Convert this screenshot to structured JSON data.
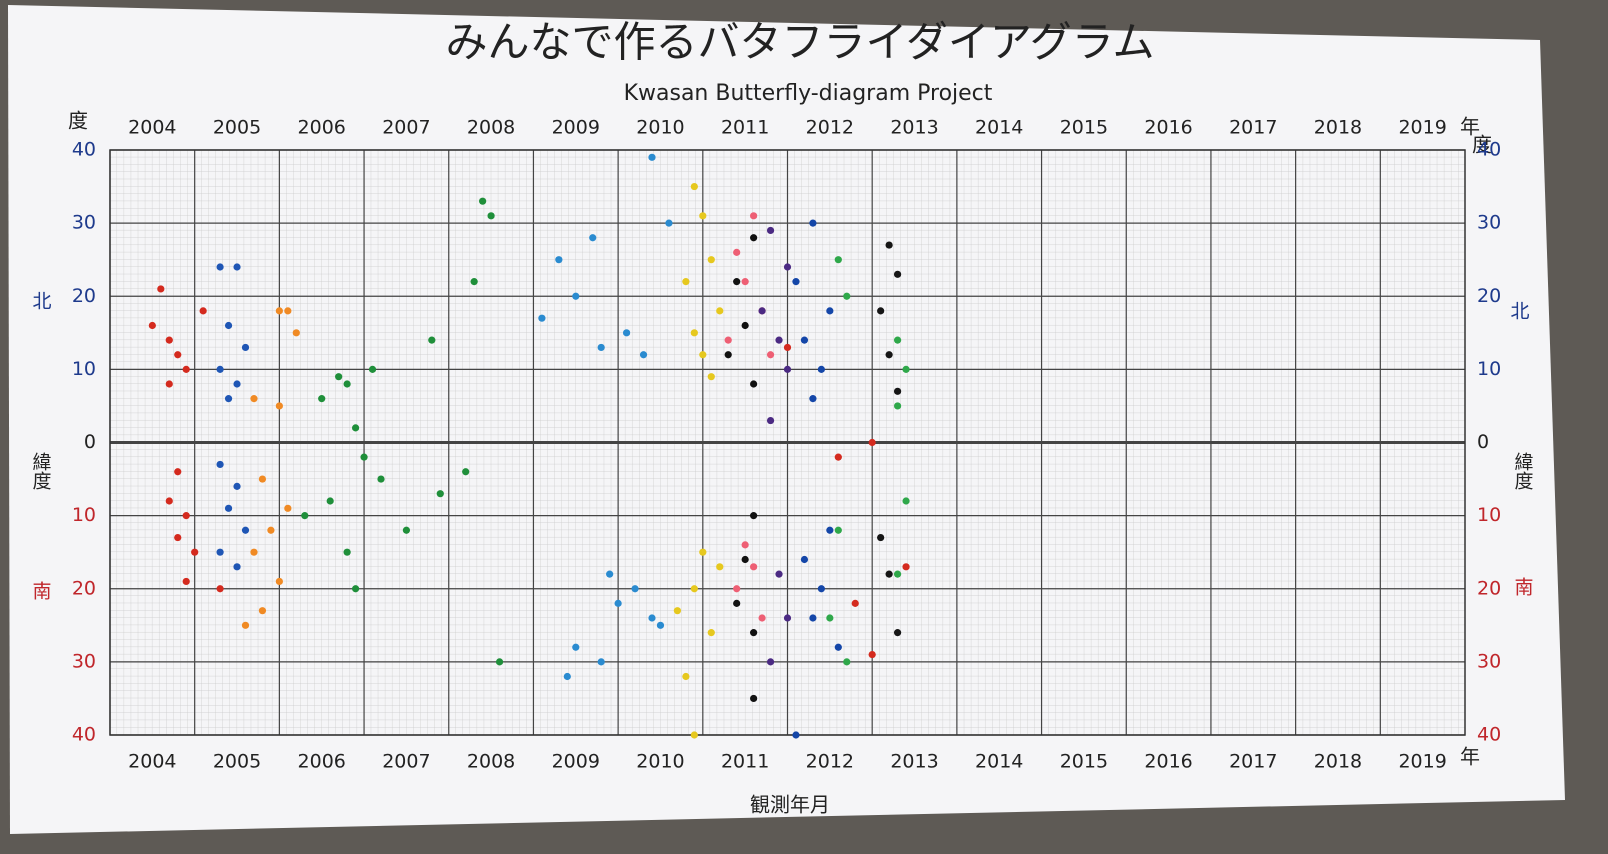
{
  "chart_data": {
    "type": "scatter",
    "title": "みんなで作るバタフライダイアグラム",
    "subtitle": "Kwasan Butterfly-diagram Project",
    "xlabel": "観測年月",
    "ylabel": "緯度",
    "x_unit": "年",
    "y_unit": "度",
    "north_label": "北",
    "south_label": "南",
    "xlim": [
      2004,
      2020
    ],
    "xticks": [
      2004,
      2005,
      2006,
      2007,
      2008,
      2009,
      2010,
      2011,
      2012,
      2013,
      2014,
      2015,
      2016,
      2017,
      2018,
      2019
    ],
    "ylim": [
      -40,
      40
    ],
    "yticks": [
      {
        "value": -40,
        "label": "40"
      },
      {
        "value": -30,
        "label": "30"
      },
      {
        "value": -20,
        "label": "20"
      },
      {
        "value": -10,
        "label": "10"
      },
      0,
      10,
      20,
      30,
      40
    ],
    "grid": true,
    "series": [
      {
        "color": "#d42a1e",
        "x": [
          2004.6,
          2004.5,
          2004.7,
          2004.8,
          2004.9,
          2004.7,
          2005.1,
          2004.8,
          2004.7,
          2004.9,
          2004.8,
          2005.0,
          2004.9,
          2005.3
        ],
        "y": [
          21,
          16,
          14,
          12,
          10,
          8,
          18,
          -4,
          -8,
          -10,
          -13,
          -15,
          -19,
          -20
        ]
      },
      {
        "color": "#1f56b5",
        "x": [
          2005.3,
          2005.5,
          2005.4,
          2005.6,
          2005.3,
          2005.5,
          2005.4,
          2005.3,
          2005.5,
          2005.4,
          2005.6,
          2005.3,
          2005.5
        ],
        "y": [
          24,
          24,
          16,
          13,
          10,
          8,
          6,
          -3,
          -6,
          -9,
          -12,
          -15,
          -17
        ]
      },
      {
        "color": "#f08a24",
        "x": [
          2006.0,
          2006.1,
          2006.2,
          2005.7,
          2006.0,
          2005.8,
          2006.1,
          2005.9,
          2005.7,
          2006.0,
          2005.8,
          2005.6
        ],
        "y": [
          18,
          18,
          15,
          6,
          5,
          -5,
          -9,
          -12,
          -15,
          -19,
          -23,
          -25
        ]
      },
      {
        "color": "#1f8f3a",
        "x": [
          2006.7,
          2006.8,
          2006.5,
          2007.1,
          2006.9,
          2008.4,
          2008.5,
          2008.3,
          2007.8,
          2007.0,
          2007.2,
          2006.6,
          2006.3,
          2007.5,
          2006.8,
          2006.9,
          2008.2,
          2007.9,
          2008.6
        ],
        "y": [
          9,
          8,
          6,
          10,
          2,
          33,
          31,
          22,
          14,
          -2,
          -5,
          -8,
          -10,
          -12,
          -15,
          -20,
          -4,
          -7,
          -30
        ]
      },
      {
        "color": "#2a8bd0",
        "x": [
          2009.7,
          2009.3,
          2009.5,
          2009.1,
          2009.8,
          2010.1,
          2010.3,
          2010.4,
          2010.6,
          2009.9,
          2010.2,
          2010.0,
          2010.4,
          2009.5,
          2009.8,
          2009.4,
          2010.5
        ],
        "y": [
          28,
          25,
          20,
          17,
          13,
          15,
          12,
          39,
          30,
          -18,
          -20,
          -22,
          -24,
          -28,
          -30,
          -32,
          -25
        ]
      },
      {
        "color": "#e6c81e",
        "x": [
          2010.9,
          2011.0,
          2011.1,
          2010.8,
          2011.2,
          2010.9,
          2011.0,
          2011.1,
          2011.0,
          2011.2,
          2010.9,
          2010.7,
          2011.1,
          2010.8,
          2010.9
        ],
        "y": [
          35,
          31,
          25,
          22,
          18,
          15,
          12,
          9,
          -15,
          -17,
          -20,
          -23,
          -26,
          -32,
          -40
        ]
      },
      {
        "color": "#ee5f74",
        "x": [
          2011.6,
          2011.4,
          2011.5,
          2011.7,
          2011.3,
          2011.8,
          2011.5,
          2011.6,
          2011.4,
          2011.7
        ],
        "y": [
          31,
          26,
          22,
          18,
          14,
          12,
          -14,
          -17,
          -20,
          -24
        ]
      },
      {
        "color": "#111111",
        "x": [
          2011.6,
          2011.4,
          2011.5,
          2011.3,
          2011.6,
          2011.6,
          2011.5,
          2011.4,
          2011.6,
          2011.6
        ],
        "y": [
          28,
          22,
          16,
          12,
          8,
          -10,
          -16,
          -22,
          -26,
          -35
        ]
      },
      {
        "color": "#4b2a83",
        "x": [
          2011.8,
          2012.0,
          2011.7,
          2011.9,
          2012.0,
          2011.8,
          2011.9,
          2012.0,
          2011.8
        ],
        "y": [
          29,
          24,
          18,
          14,
          10,
          3,
          -18,
          -24,
          -30
        ]
      },
      {
        "color": "#1446a8",
        "x": [
          2012.3,
          2012.1,
          2012.5,
          2012.2,
          2012.4,
          2012.3,
          2012.5,
          2012.2,
          2012.4,
          2012.3,
          2012.6,
          2012.1
        ],
        "y": [
          30,
          22,
          18,
          14,
          10,
          6,
          -12,
          -16,
          -20,
          -24,
          -28,
          -40
        ]
      },
      {
        "color": "#2fa84a",
        "x": [
          2012.6,
          2012.7,
          2013.3,
          2013.4,
          2013.3,
          2013.4,
          2012.6,
          2013.3,
          2012.5,
          2012.7
        ],
        "y": [
          25,
          20,
          14,
          10,
          5,
          -8,
          -12,
          -18,
          -24,
          -30
        ]
      },
      {
        "color": "#161616",
        "x": [
          2013.2,
          2013.3,
          2013.1,
          2013.2,
          2013.3,
          2013.1,
          2013.2,
          2013.3
        ],
        "y": [
          27,
          23,
          18,
          12,
          7,
          -13,
          -18,
          -26
        ]
      },
      {
        "color": "#d42a1e",
        "x": [
          2012.0,
          2013.0,
          2012.6,
          2013.4,
          2012.8,
          2013.0
        ],
        "y": [
          13,
          0,
          -2,
          -17,
          -22,
          -29
        ]
      }
    ]
  }
}
